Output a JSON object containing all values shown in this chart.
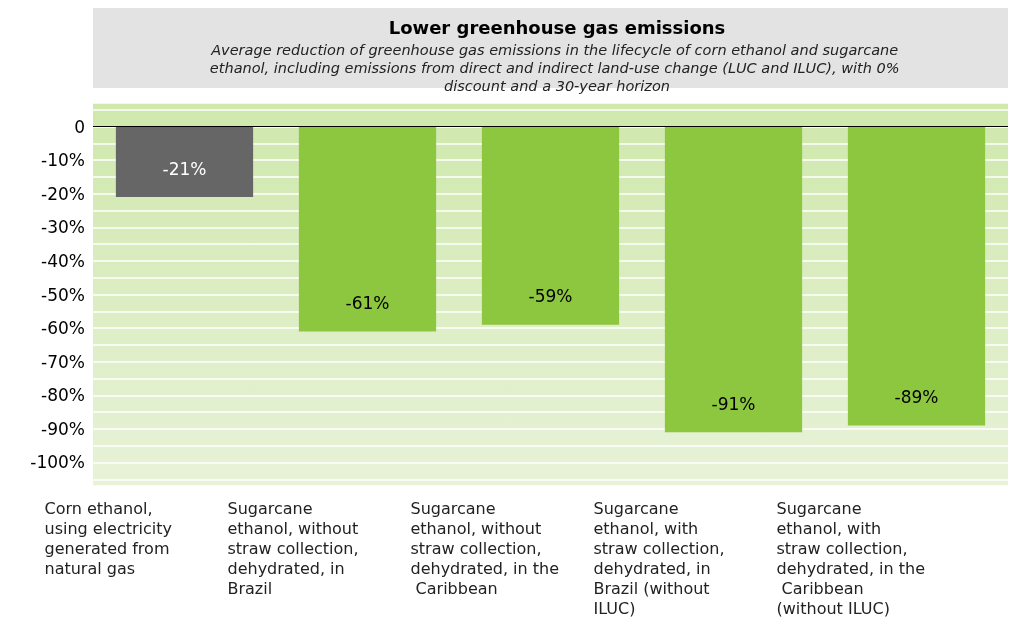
{
  "chart_data": {
    "type": "bar",
    "title": "Lower greenhouse gas emissions",
    "subtitle": "Average reduction of greenhouse gas emissions in the lifecycle of corn ethanol and sugarcane ethanol, including emissions from direct and indirect land-use change (LUC and ILUC), with 0% discount and a 30-year horizon",
    "categories": [
      "Corn ethanol, using electricity generated from natural gas",
      "Sugarcane ethanol, without straw collection, dehydrated, in Brazil",
      "Sugarcane ethanol, without straw collection, dehydrated, in the Caribbean",
      "Sugarcane ethanol, with straw collection, dehydrated, in Brazil (without ILUC)",
      "Sugarcane ethanol, with straw collection, dehydrated, in the Caribbean (without ILUC)"
    ],
    "values": [
      -21,
      -61,
      -59,
      -91,
      -89
    ],
    "colors": [
      "#666666",
      "#8dc63f",
      "#8dc63f",
      "#8dc63f",
      "#8dc63f"
    ],
    "value_labels": [
      "-21%",
      "-61%",
      "-59%",
      "-91%",
      "-89%"
    ],
    "ylim": [
      -107,
      7
    ],
    "yticks": [
      0,
      {
        "value": -10,
        "label": "-10%"
      },
      {
        "value": -20,
        "label": "-20%"
      },
      {
        "value": -30,
        "label": "-30%"
      },
      {
        "value": -40,
        "label": "-40%"
      },
      {
        "value": -50,
        "label": "-50%"
      },
      {
        "value": -60,
        "label": "-60%"
      },
      {
        "value": -70,
        "label": "-70%"
      },
      {
        "value": -80,
        "label": "-80%"
      },
      {
        "value": -90,
        "label": "-90%"
      },
      {
        "value": -100,
        "label": "-100%"
      }
    ],
    "ref_lines": [
      {
        "axis": "y",
        "value": 0,
        "color": "#000000"
      }
    ],
    "grid": "y"
  }
}
